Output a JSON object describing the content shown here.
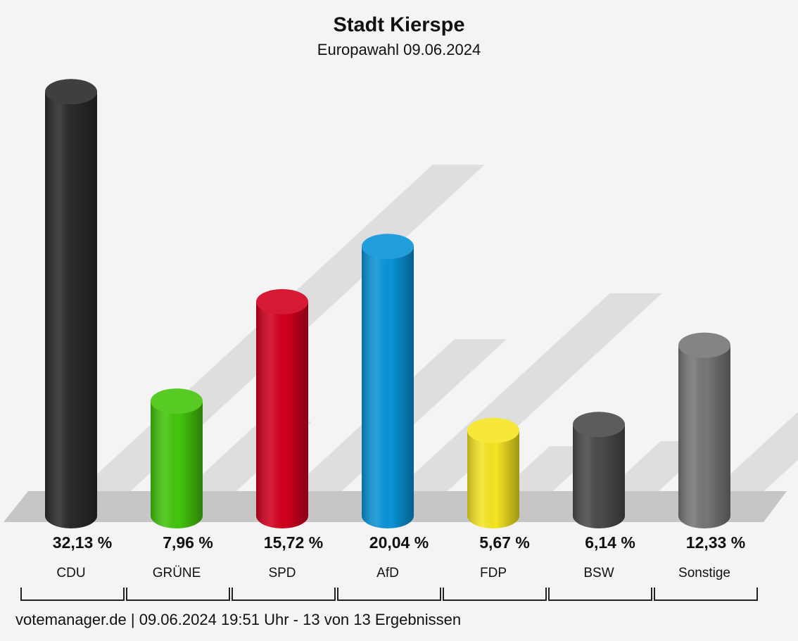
{
  "chart_data": {
    "type": "bar",
    "title": "Stadt Kierspe",
    "subtitle": "Europawahl 09.06.2024",
    "categories": [
      "CDU",
      "GRÜNE",
      "SPD",
      "AfD",
      "FDP",
      "BSW",
      "Sonstige"
    ],
    "values": [
      32.13,
      7.96,
      15.72,
      20.04,
      5.67,
      6.14,
      12.33
    ],
    "value_labels": [
      "32,13 %",
      "7,96 %",
      "15,72 %",
      "20,04 %",
      "5,67 %",
      "6,14 %",
      "12,33 %"
    ],
    "colors": [
      "#2a2a2a",
      "#44c40c",
      "#d2001e",
      "#0a94d8",
      "#f5e523",
      "#4a4a4a",
      "#767676"
    ],
    "footer": "votemanager.de | 09.06.2024 19:51 Uhr - 13 von 13 Ergebnissen"
  }
}
